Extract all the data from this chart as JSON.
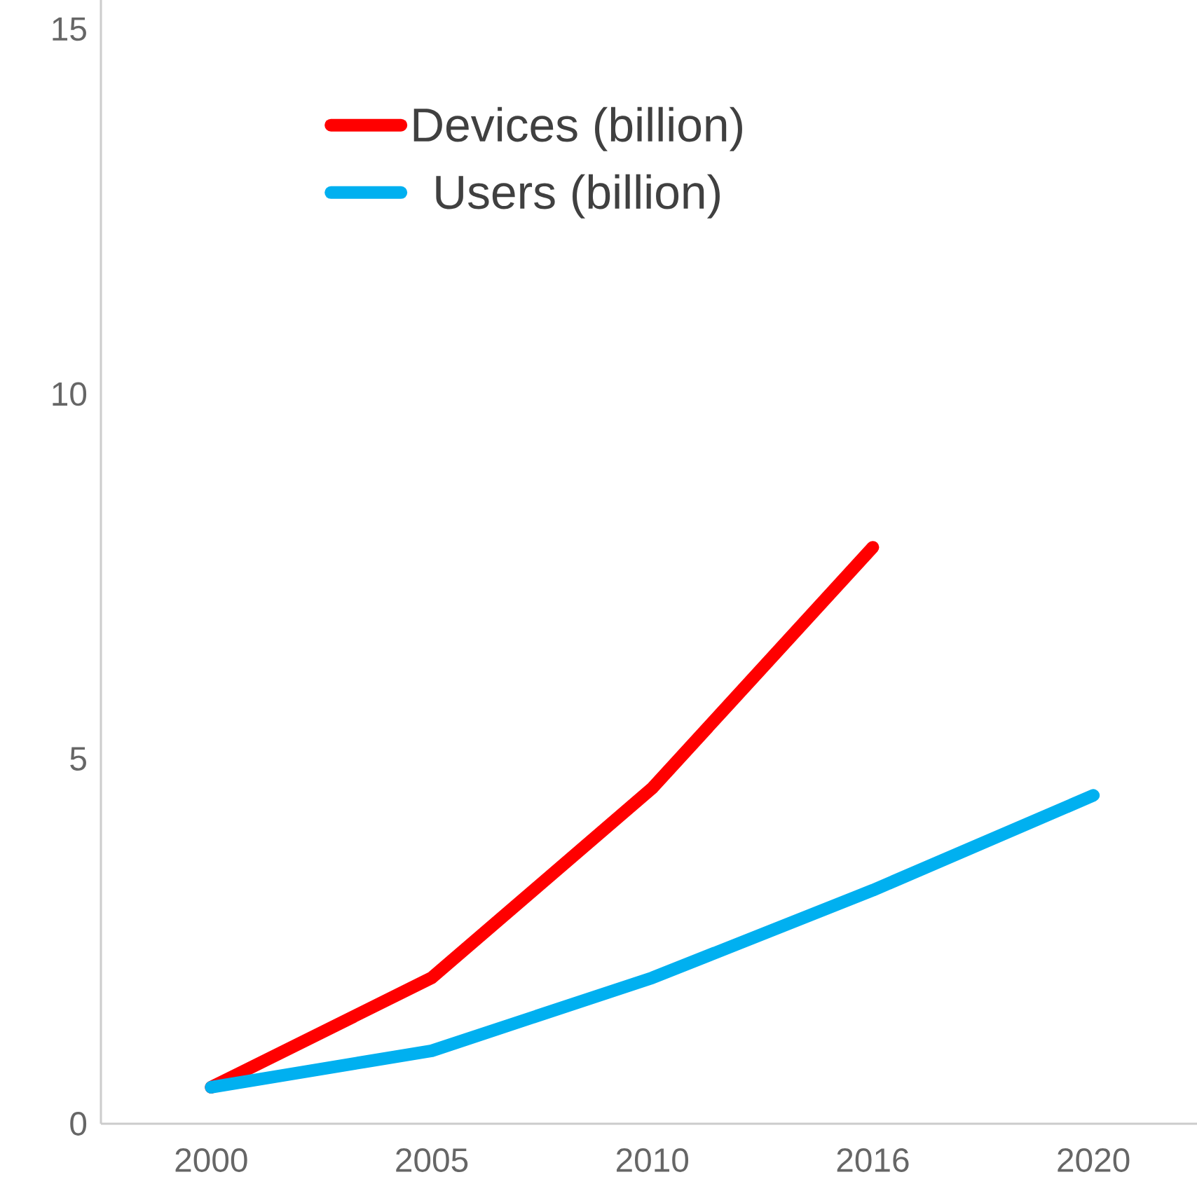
{
  "chart_data": {
    "type": "line",
    "categories": [
      "2000",
      "2005",
      "2010",
      "2016",
      "2020"
    ],
    "ylim": [
      0,
      15.4
    ],
    "yticks": [
      0,
      5,
      10,
      15
    ],
    "legend": "top",
    "series": [
      {
        "name": "Devices (billion)",
        "color": "#ff0000",
        "values": [
          0.5,
          2,
          4.6,
          7.9,
          null
        ]
      },
      {
        "name": "Users (billion)",
        "color": "#00b0f0",
        "values": [
          0.5,
          1,
          2,
          3.2,
          4.5
        ]
      }
    ]
  }
}
